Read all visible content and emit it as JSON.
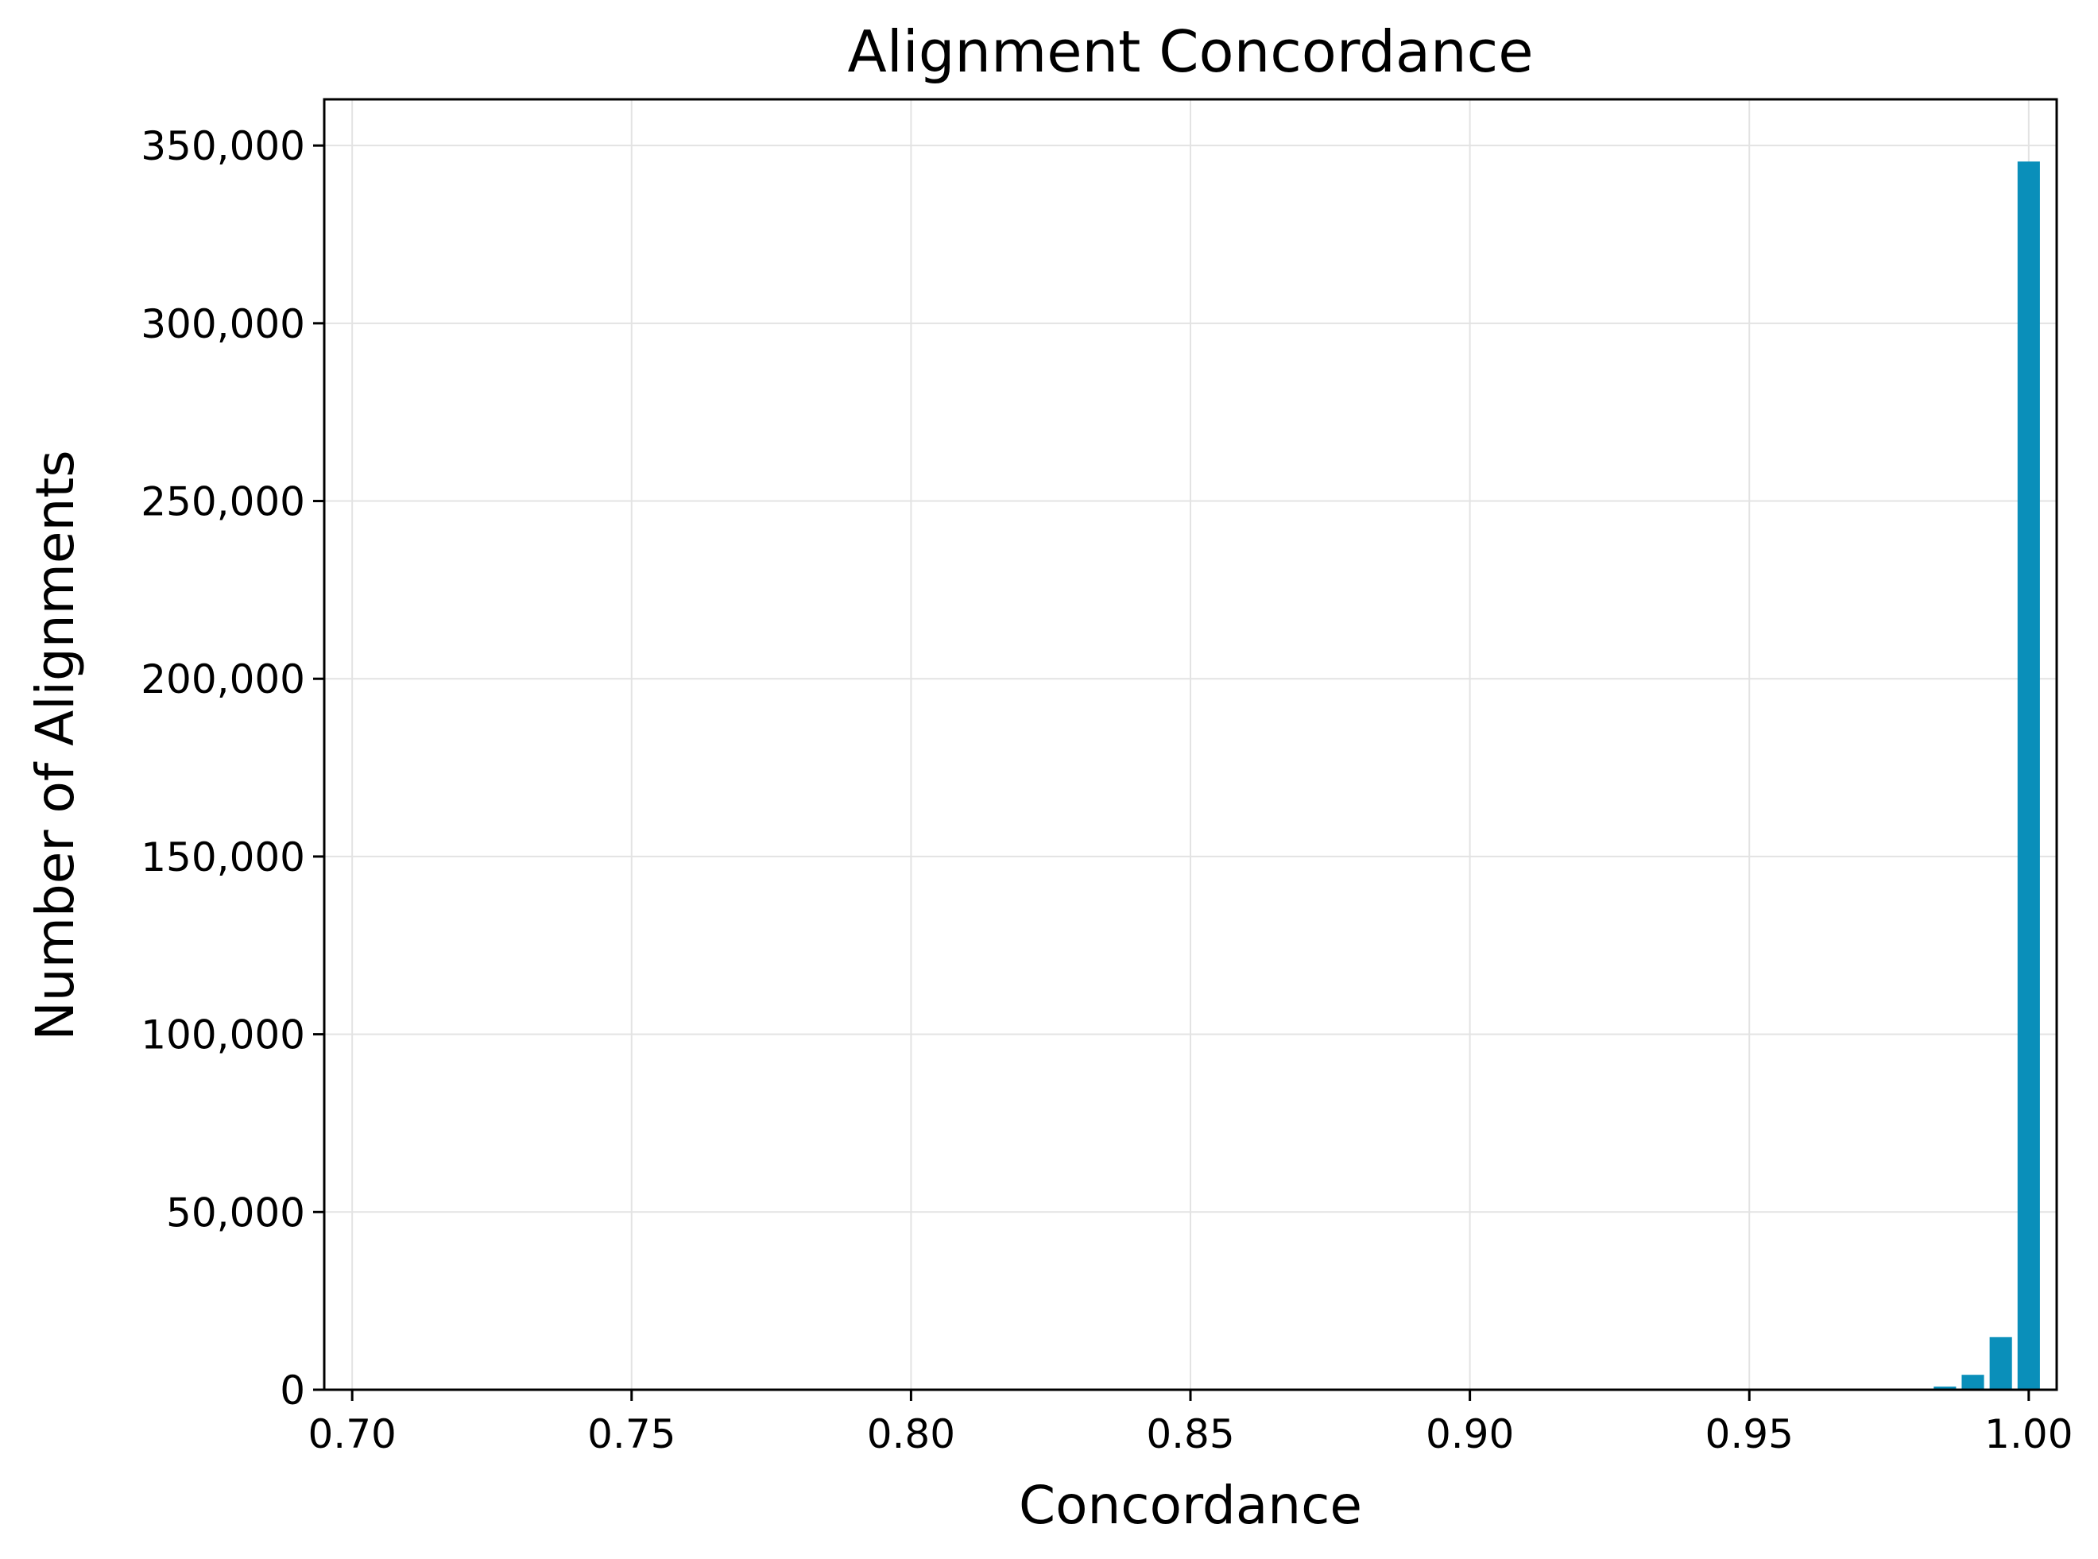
{
  "chart_data": {
    "type": "bar",
    "title": "Alignment Concordance",
    "xlabel": "Concordance",
    "ylabel": "Number of Alignments",
    "xlim": [
      0.695,
      1.005
    ],
    "ylim": [
      0,
      363000
    ],
    "x_ticks": [
      0.7,
      0.75,
      0.8,
      0.85,
      0.9,
      0.95,
      1.0
    ],
    "x_tick_labels": [
      "0.70",
      "0.75",
      "0.80",
      "0.85",
      "0.90",
      "0.95",
      "1.00"
    ],
    "y_ticks": [
      0,
      50000,
      100000,
      150000,
      200000,
      250000,
      300000,
      350000
    ],
    "y_tick_labels": [
      "0",
      "50,000",
      "100,000",
      "150,000",
      "200,000",
      "250,000",
      "300,000",
      "350,000"
    ],
    "grid": true,
    "bar_color": "#0a8fba",
    "bin_width": 0.005,
    "bins": [
      {
        "x": 0.985,
        "value": 900
      },
      {
        "x": 0.99,
        "value": 4200
      },
      {
        "x": 0.995,
        "value": 14800
      },
      {
        "x": 1.0,
        "value": 345500
      }
    ]
  }
}
